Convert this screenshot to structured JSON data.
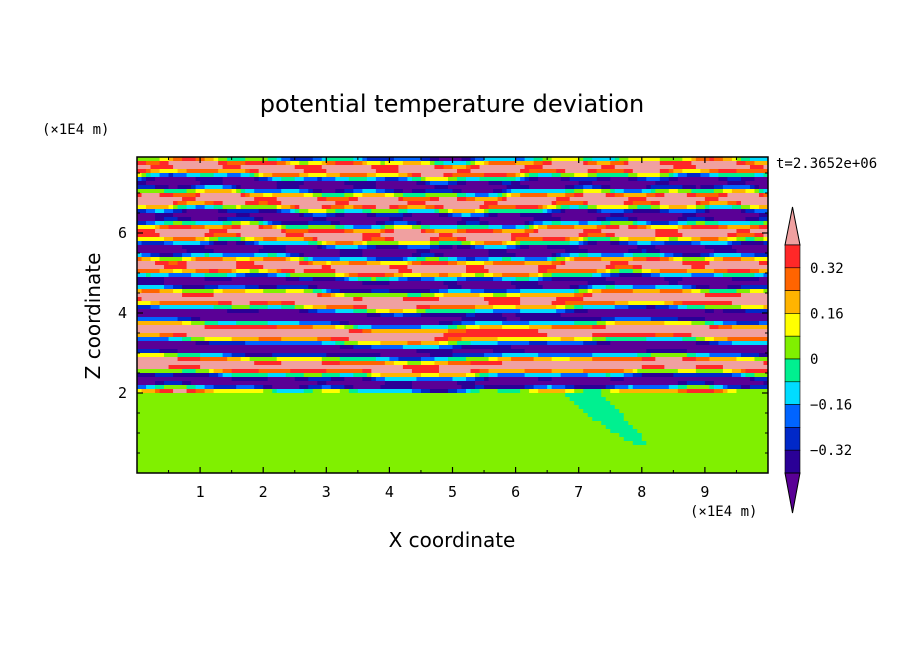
{
  "chart_data": {
    "type": "heatmap",
    "title": "potential temperature deviation",
    "xlabel": "X coordinate",
    "ylabel": "Z coordinate",
    "x_unit": "(×1E4 m)",
    "y_unit": "(×1E4 m)",
    "time_label": "t=2.3652e+06",
    "xlim": [
      0,
      10
    ],
    "ylim": [
      0,
      7.9
    ],
    "x_ticks": [
      "1",
      "2",
      "3",
      "4",
      "5",
      "6",
      "7",
      "8",
      "9"
    ],
    "y_ticks": [
      "2",
      "4",
      "6"
    ],
    "colorbar": {
      "levels": [
        -0.48,
        -0.4,
        -0.32,
        -0.24,
        -0.16,
        -0.08,
        0,
        0.08,
        0.16,
        0.24,
        0.32,
        0.4,
        0.48
      ],
      "tick_labels": [
        "0.32",
        "0.16",
        "0",
        "−0.16",
        "−0.32"
      ],
      "tick_values": [
        0.32,
        0.16,
        0,
        -0.16,
        -0.32
      ],
      "colors": [
        "#5a0096",
        "#2a0096",
        "#0028c8",
        "#0064ff",
        "#00dcff",
        "#00f090",
        "#80f000",
        "#ffff00",
        "#ffb400",
        "#ff6400",
        "#ff2828",
        "#f0a0a0"
      ]
    }
  }
}
